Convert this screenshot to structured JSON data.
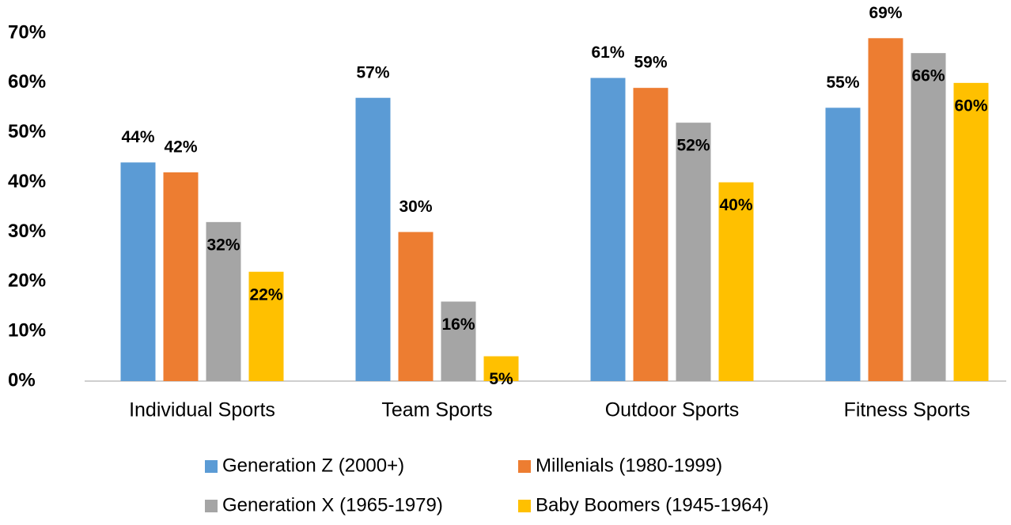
{
  "chart_data": {
    "type": "bar",
    "categories": [
      "Individual Sports",
      "Team Sports",
      "Outdoor Sports",
      "Fitness Sports"
    ],
    "series": [
      {
        "name": "Generation Z (2000+)",
        "color": "#5b9bd5",
        "values": [
          44,
          57,
          61,
          55
        ],
        "value_labels": [
          "44%",
          "57%",
          "61%",
          "55%"
        ]
      },
      {
        "name": "Millenials (1980-1999)",
        "color": "#ed7d31",
        "values": [
          42,
          30,
          59,
          69
        ],
        "value_labels": [
          "42%",
          "30%",
          "59%",
          "69%"
        ]
      },
      {
        "name": "Generation X (1965-1979)",
        "color": "#a5a5a5",
        "values": [
          32,
          16,
          52,
          66
        ],
        "value_labels": [
          "32%",
          "16%",
          "52%",
          "66%"
        ]
      },
      {
        "name": "Baby Boomers (1945-1964)",
        "color": "#ffc000",
        "values": [
          22,
          5,
          40,
          60
        ],
        "value_labels": [
          "22%",
          "5%",
          "40%",
          "60%"
        ]
      }
    ],
    "ylim": [
      0,
      70
    ],
    "yticks": [
      {
        "value": 0,
        "label": "0%"
      },
      {
        "value": 10,
        "label": "10%"
      },
      {
        "value": 20,
        "label": "20%"
      },
      {
        "value": 30,
        "label": "30%"
      },
      {
        "value": 40,
        "label": "40%"
      },
      {
        "value": 50,
        "label": "50%"
      },
      {
        "value": 60,
        "label": "60%"
      },
      {
        "value": 70,
        "label": "70%"
      }
    ],
    "grid": false,
    "legend": "bottom"
  }
}
